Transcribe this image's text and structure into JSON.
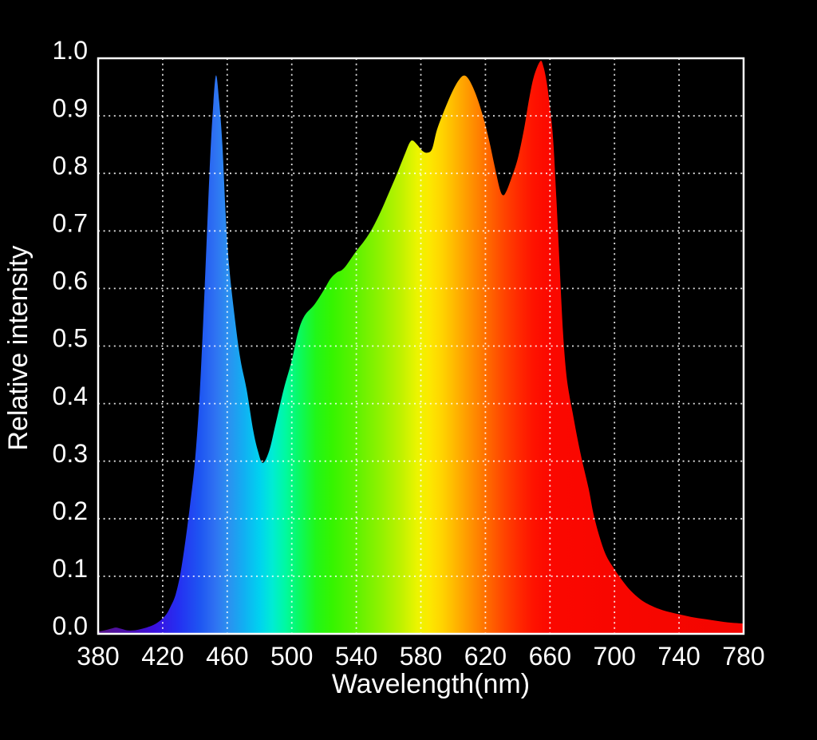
{
  "page": {
    "background_color": "#000000",
    "text_color": "#ffffff",
    "description": "Relative spectral power distribution plot of a full-spectrum light source, area filled with rainbow wavelength colors on black background"
  },
  "chart_data": {
    "type": "area",
    "title": "",
    "xlabel": "Wavelength(nm)",
    "ylabel": "Relative intensity",
    "xlim": [
      380,
      780
    ],
    "ylim": [
      0.0,
      1.0
    ],
    "xticks": [
      380,
      420,
      460,
      500,
      540,
      580,
      620,
      660,
      700,
      740,
      780
    ],
    "ytick_labels": [
      "0.0",
      "0.1",
      "0.2",
      "0.3",
      "0.4",
      "0.5",
      "0.6",
      "0.7",
      "0.8",
      "0.9",
      "1.0"
    ],
    "grid": {
      "style": "dotted",
      "color": "#ffffff",
      "interior_only": true
    },
    "axis_color": "#ffffff",
    "legend": null,
    "series_name": "relative-intensity-spectrum",
    "peaks": [
      {
        "nm": 453,
        "intensity": 0.97,
        "note": "blue peak"
      },
      {
        "nm": 575,
        "intensity": 0.86,
        "note": "yellow-green shoulder peak"
      },
      {
        "nm": 607,
        "intensity": 0.97,
        "note": "orange peak"
      },
      {
        "nm": 654,
        "intensity": 0.995,
        "note": "red peak, maximum"
      }
    ],
    "valleys": [
      {
        "nm": 482,
        "intensity": 0.3
      },
      {
        "nm": 584,
        "intensity": 0.836
      },
      {
        "nm": 631,
        "intensity": 0.76
      }
    ],
    "points": [
      [
        380,
        0.004
      ],
      [
        384,
        0.006
      ],
      [
        388,
        0.009
      ],
      [
        391,
        0.011
      ],
      [
        394,
        0.009
      ],
      [
        398,
        0.006
      ],
      [
        402,
        0.006
      ],
      [
        406,
        0.008
      ],
      [
        410,
        0.011
      ],
      [
        414,
        0.015
      ],
      [
        418,
        0.022
      ],
      [
        422,
        0.033
      ],
      [
        425,
        0.048
      ],
      [
        428,
        0.068
      ],
      [
        431,
        0.105
      ],
      [
        434,
        0.16
      ],
      [
        437,
        0.225
      ],
      [
        440,
        0.3
      ],
      [
        443,
        0.42
      ],
      [
        446,
        0.6
      ],
      [
        449,
        0.8
      ],
      [
        451,
        0.905
      ],
      [
        453,
        0.97
      ],
      [
        455,
        0.925
      ],
      [
        457,
        0.85
      ],
      [
        459,
        0.73
      ],
      [
        461,
        0.645
      ],
      [
        464,
        0.565
      ],
      [
        468,
        0.48
      ],
      [
        472,
        0.425
      ],
      [
        476,
        0.355
      ],
      [
        479,
        0.318
      ],
      [
        482,
        0.297
      ],
      [
        486,
        0.318
      ],
      [
        490,
        0.365
      ],
      [
        495,
        0.425
      ],
      [
        500,
        0.475
      ],
      [
        504,
        0.525
      ],
      [
        508,
        0.553
      ],
      [
        514,
        0.572
      ],
      [
        520,
        0.598
      ],
      [
        524,
        0.617
      ],
      [
        528,
        0.628
      ],
      [
        531,
        0.632
      ],
      [
        534,
        0.641
      ],
      [
        540,
        0.665
      ],
      [
        545,
        0.683
      ],
      [
        550,
        0.705
      ],
      [
        555,
        0.733
      ],
      [
        560,
        0.765
      ],
      [
        565,
        0.798
      ],
      [
        570,
        0.833
      ],
      [
        573,
        0.853
      ],
      [
        575,
        0.857
      ],
      [
        578,
        0.849
      ],
      [
        581,
        0.839
      ],
      [
        584,
        0.836
      ],
      [
        587,
        0.843
      ],
      [
        590,
        0.876
      ],
      [
        595,
        0.913
      ],
      [
        600,
        0.945
      ],
      [
        604,
        0.964
      ],
      [
        607,
        0.97
      ],
      [
        610,
        0.962
      ],
      [
        614,
        0.938
      ],
      [
        618,
        0.904
      ],
      [
        622,
        0.861
      ],
      [
        626,
        0.809
      ],
      [
        629,
        0.772
      ],
      [
        631,
        0.762
      ],
      [
        633,
        0.769
      ],
      [
        636,
        0.791
      ],
      [
        640,
        0.825
      ],
      [
        644,
        0.878
      ],
      [
        647,
        0.928
      ],
      [
        650,
        0.968
      ],
      [
        654,
        0.995
      ],
      [
        656,
        0.985
      ],
      [
        658,
        0.958
      ],
      [
        660,
        0.915
      ],
      [
        662,
        0.858
      ],
      [
        664,
        0.755
      ],
      [
        666,
        0.64
      ],
      [
        668,
        0.528
      ],
      [
        670,
        0.455
      ],
      [
        672,
        0.415
      ],
      [
        674,
        0.385
      ],
      [
        677,
        0.34
      ],
      [
        680,
        0.3
      ],
      [
        684,
        0.252
      ],
      [
        687,
        0.208
      ],
      [
        691,
        0.166
      ],
      [
        695,
        0.135
      ],
      [
        700,
        0.112
      ],
      [
        705,
        0.092
      ],
      [
        710,
        0.075
      ],
      [
        716,
        0.06
      ],
      [
        722,
        0.05
      ],
      [
        730,
        0.041
      ],
      [
        740,
        0.034
      ],
      [
        750,
        0.028
      ],
      [
        760,
        0.024
      ],
      [
        770,
        0.02
      ],
      [
        780,
        0.018
      ]
    ],
    "spectrum_gradient": [
      [
        380,
        "#561387"
      ],
      [
        400,
        "#4a0fb4"
      ],
      [
        415,
        "#3a10e0"
      ],
      [
        430,
        "#2430f2"
      ],
      [
        443,
        "#1e55f2"
      ],
      [
        452,
        "#2e70f2"
      ],
      [
        460,
        "#2d8ef0"
      ],
      [
        470,
        "#12aef2"
      ],
      [
        480,
        "#00d2f0"
      ],
      [
        488,
        "#00ecd4"
      ],
      [
        496,
        "#00f9a2"
      ],
      [
        505,
        "#0bf95e"
      ],
      [
        515,
        "#21f718"
      ],
      [
        525,
        "#35f500"
      ],
      [
        540,
        "#5ff200"
      ],
      [
        555,
        "#90f200"
      ],
      [
        568,
        "#c0f200"
      ],
      [
        578,
        "#ecf500"
      ],
      [
        585,
        "#fce900"
      ],
      [
        593,
        "#ffd400"
      ],
      [
        600,
        "#ffbb00"
      ],
      [
        608,
        "#ff9d00"
      ],
      [
        616,
        "#ff8000"
      ],
      [
        624,
        "#ff6000"
      ],
      [
        632,
        "#ff4300"
      ],
      [
        641,
        "#ff2800"
      ],
      [
        650,
        "#fe1200"
      ],
      [
        660,
        "#fb0800"
      ],
      [
        700,
        "#f80600"
      ],
      [
        780,
        "#f30500"
      ]
    ]
  }
}
